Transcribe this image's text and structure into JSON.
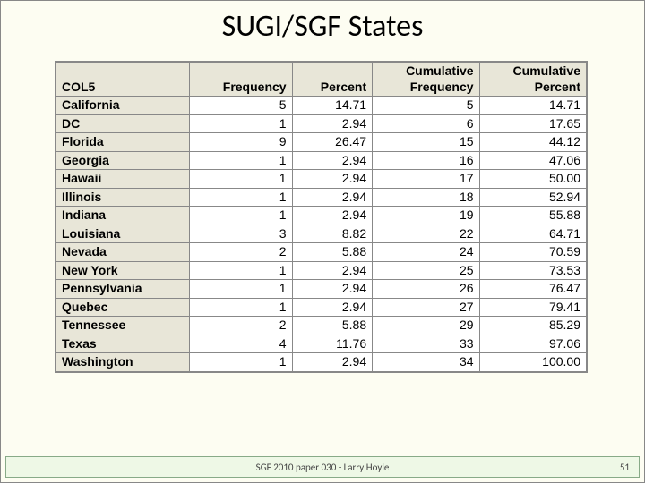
{
  "title": "SUGI/SGF States",
  "table": {
    "type": "table",
    "background_color": "#ffffff",
    "header_bg": "#e8e6d8",
    "border_color": "#888888",
    "font_size": 14,
    "columns": [
      {
        "key": "col5",
        "label": "COL5",
        "width": 150,
        "align": "left"
      },
      {
        "key": "freq",
        "label": "Frequency",
        "width": 115,
        "align": "right"
      },
      {
        "key": "pct",
        "label": "Percent",
        "width": 90,
        "align": "right"
      },
      {
        "key": "cfreq",
        "label": "Cumulative Frequency",
        "width": 120,
        "align": "right"
      },
      {
        "key": "cpct",
        "label": "Cumulative Percent",
        "width": 120,
        "align": "right"
      }
    ],
    "rows": [
      {
        "col5": "California",
        "freq": "5",
        "pct": "14.71",
        "cfreq": "5",
        "cpct": "14.71"
      },
      {
        "col5": "DC",
        "freq": "1",
        "pct": "2.94",
        "cfreq": "6",
        "cpct": "17.65"
      },
      {
        "col5": "Florida",
        "freq": "9",
        "pct": "26.47",
        "cfreq": "15",
        "cpct": "44.12"
      },
      {
        "col5": "Georgia",
        "freq": "1",
        "pct": "2.94",
        "cfreq": "16",
        "cpct": "47.06"
      },
      {
        "col5": "Hawaii",
        "freq": "1",
        "pct": "2.94",
        "cfreq": "17",
        "cpct": "50.00"
      },
      {
        "col5": "Illinois",
        "freq": "1",
        "pct": "2.94",
        "cfreq": "18",
        "cpct": "52.94"
      },
      {
        "col5": "Indiana",
        "freq": "1",
        "pct": "2.94",
        "cfreq": "19",
        "cpct": "55.88"
      },
      {
        "col5": "Louisiana",
        "freq": "3",
        "pct": "8.82",
        "cfreq": "22",
        "cpct": "64.71"
      },
      {
        "col5": "Nevada",
        "freq": "2",
        "pct": "5.88",
        "cfreq": "24",
        "cpct": "70.59"
      },
      {
        "col5": "New York",
        "freq": "1",
        "pct": "2.94",
        "cfreq": "25",
        "cpct": "73.53"
      },
      {
        "col5": "Pennsylvania",
        "freq": "1",
        "pct": "2.94",
        "cfreq": "26",
        "cpct": "76.47"
      },
      {
        "col5": "Quebec",
        "freq": "1",
        "pct": "2.94",
        "cfreq": "27",
        "cpct": "79.41"
      },
      {
        "col5": "Tennessee",
        "freq": "2",
        "pct": "5.88",
        "cfreq": "29",
        "cpct": "85.29"
      },
      {
        "col5": "Texas",
        "freq": "4",
        "pct": "11.76",
        "cfreq": "33",
        "cpct": "97.06"
      },
      {
        "col5": "Washington",
        "freq": "1",
        "pct": "2.94",
        "cfreq": "34",
        "cpct": "100.00"
      }
    ]
  },
  "footer": {
    "text": "SGF 2010 paper 030 - Larry Hoyle",
    "page": "51",
    "bg": "#eef8e6",
    "border": "#8aa88a"
  },
  "page_bg": "#fdfdf2"
}
